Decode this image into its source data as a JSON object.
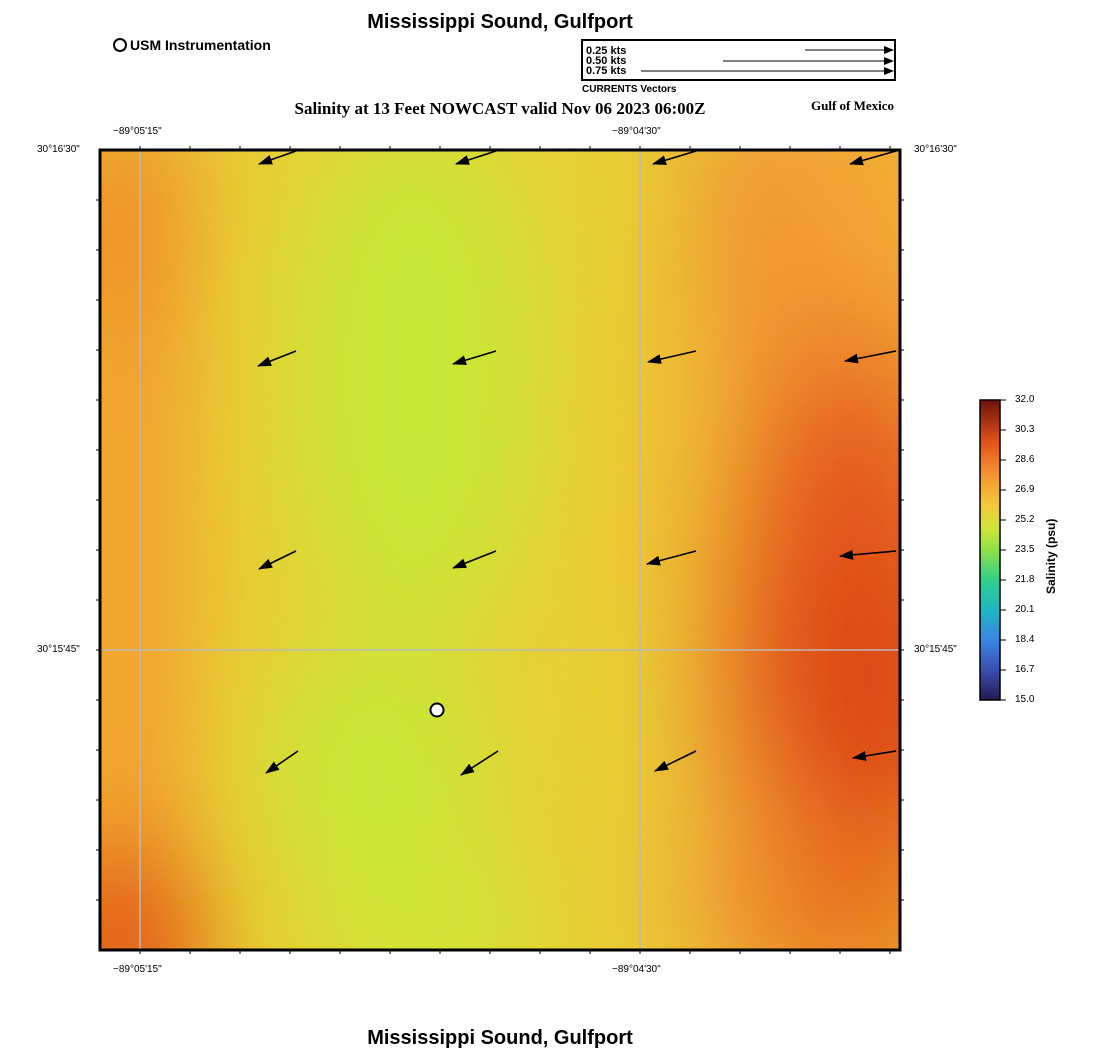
{
  "header": {
    "title": "Mississippi Sound, Gulfport",
    "subtitle": "Salinity at 13 Feet NOWCAST valid Nov 06 2023 06:00Z",
    "region_label": "Gulf of Mexico",
    "instrument_label": "USM Instrumentation"
  },
  "vector_legend": {
    "entries": [
      "0.25 kts",
      "0.50 kts",
      "0.75 kts"
    ],
    "caption": "CURRENTS Vectors"
  },
  "axes": {
    "top_lon_labels": [
      "−89°05'15\"",
      "−89°04'30\""
    ],
    "bottom_lon_labels": [
      "−89°05'15\"",
      "−89°04'30\""
    ],
    "left_lat_labels": [
      "30°16'30\"",
      "30°15'45\""
    ],
    "right_lat_labels": [
      "30°16'30\"",
      "30°15'45\""
    ]
  },
  "colorbar": {
    "title": "Salinity (psu)",
    "min": 15.0,
    "max": 32.0,
    "tick_labels": [
      "32.0",
      "30.3",
      "28.6",
      "26.9",
      "25.2",
      "23.5",
      "21.8",
      "20.1",
      "18.4",
      "16.7",
      "15.0"
    ],
    "colors": [
      "#2a1a5e",
      "#3f6fd6",
      "#1fb8c0",
      "#3dd17a",
      "#c7e835",
      "#f2c436",
      "#f7942e",
      "#e5531a",
      "#a51a0a",
      "#6e1208"
    ]
  },
  "current_vectors": {
    "speed_unit": "kts",
    "direction": "toward WSW",
    "rows": 4,
    "columns": 4
  },
  "map": {
    "field": "salinity",
    "color_notes": "green-yellow (~24 psu) center-left, orange-red (~29-30 psu) east and southwest corner"
  },
  "footer": {
    "title": "Mississippi Sound, Gulfport"
  }
}
